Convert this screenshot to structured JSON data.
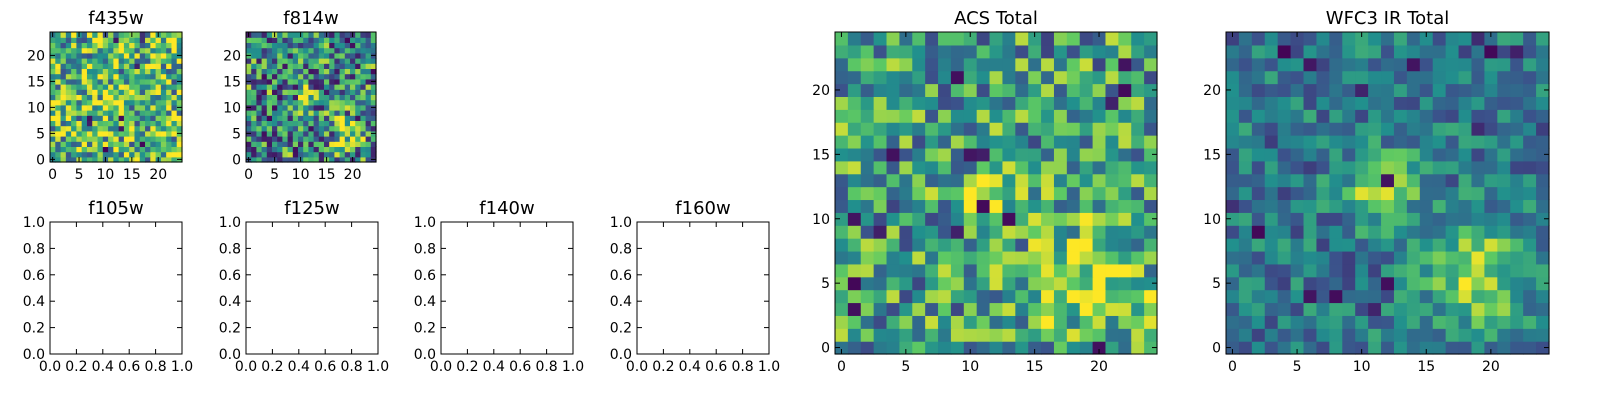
{
  "figure": {
    "colormap": "viridis",
    "colormap_stops": [
      "#440154",
      "#3b528b",
      "#21908d",
      "#5dc963",
      "#fde725"
    ]
  },
  "chart_data": [
    {
      "id": "f435w",
      "type": "heatmap",
      "title": "f435w",
      "has_image": true,
      "xlim": [
        -0.5,
        24.5
      ],
      "ylim": [
        -0.5,
        24.5
      ],
      "xticks": [
        "0",
        "5",
        "10",
        "15",
        "20"
      ],
      "yticks": [
        "0",
        "5",
        "10",
        "15",
        "20"
      ],
      "grid": false,
      "value_range": [
        0,
        1
      ]
    },
    {
      "id": "f814w",
      "type": "heatmap",
      "title": "f814w",
      "has_image": true,
      "xlim": [
        -0.5,
        24.5
      ],
      "ylim": [
        -0.5,
        24.5
      ],
      "xticks": [
        "0",
        "5",
        "10",
        "15",
        "20"
      ],
      "yticks": [
        "0",
        "5",
        "10",
        "15",
        "20"
      ],
      "grid": false,
      "value_range": [
        0,
        1
      ]
    },
    {
      "id": "f105w",
      "type": "heatmap",
      "title": "f105w",
      "has_image": false,
      "xlim": [
        0,
        1
      ],
      "ylim": [
        0,
        1
      ],
      "xticks": [
        "0.0",
        "0.2",
        "0.4",
        "0.6",
        "0.8",
        "1.0"
      ],
      "yticks": [
        "0.0",
        "0.2",
        "0.4",
        "0.6",
        "0.8",
        "1.0"
      ],
      "grid": false
    },
    {
      "id": "f125w",
      "type": "heatmap",
      "title": "f125w",
      "has_image": false,
      "xlim": [
        0,
        1
      ],
      "ylim": [
        0,
        1
      ],
      "xticks": [
        "0.0",
        "0.2",
        "0.4",
        "0.6",
        "0.8",
        "1.0"
      ],
      "yticks": [
        "0.0",
        "0.2",
        "0.4",
        "0.6",
        "0.8",
        "1.0"
      ],
      "grid": false
    },
    {
      "id": "f140w",
      "type": "heatmap",
      "title": "f140w",
      "has_image": false,
      "xlim": [
        0,
        1
      ],
      "ylim": [
        0,
        1
      ],
      "xticks": [
        "0.0",
        "0.2",
        "0.4",
        "0.6",
        "0.8",
        "1.0"
      ],
      "yticks": [
        "0.0",
        "0.2",
        "0.4",
        "0.6",
        "0.8",
        "1.0"
      ],
      "grid": false
    },
    {
      "id": "f160w",
      "type": "heatmap",
      "title": "f160w",
      "has_image": false,
      "xlim": [
        0,
        1
      ],
      "ylim": [
        0,
        1
      ],
      "xticks": [
        "0.0",
        "0.2",
        "0.4",
        "0.6",
        "0.8",
        "1.0"
      ],
      "yticks": [
        "0.0",
        "0.2",
        "0.4",
        "0.6",
        "0.8",
        "1.0"
      ],
      "grid": false
    },
    {
      "id": "acs",
      "type": "heatmap",
      "title": "ACS Total",
      "has_image": true,
      "xlim": [
        -0.5,
        24.5
      ],
      "ylim": [
        -0.5,
        24.5
      ],
      "xticks": [
        "0",
        "5",
        "10",
        "15",
        "20"
      ],
      "yticks": [
        "0",
        "5",
        "10",
        "15",
        "20"
      ],
      "grid": false,
      "value_range": [
        0,
        1
      ]
    },
    {
      "id": "wfc3",
      "type": "heatmap",
      "title": "WFC3 IR Total",
      "has_image": true,
      "xlim": [
        -0.5,
        24.5
      ],
      "ylim": [
        -0.5,
        24.5
      ],
      "xticks": [
        "0",
        "5",
        "10",
        "15",
        "20"
      ],
      "yticks": [
        "0",
        "5",
        "10",
        "15",
        "20"
      ],
      "grid": false,
      "value_range": [
        0,
        1
      ]
    }
  ]
}
